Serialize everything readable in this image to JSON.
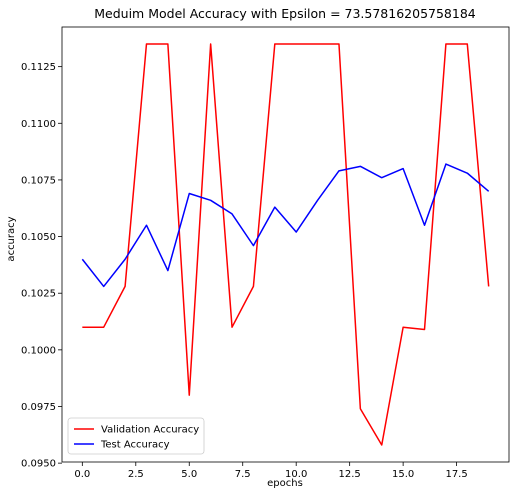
{
  "chart_data": {
    "type": "line",
    "title": "Meduim Model Accuracy with Epsilon = 73.57816205758184",
    "xlabel": "epochs",
    "ylabel": "accuracy",
    "xlim": [
      -0.95,
      19.95
    ],
    "ylim": [
      0.09505,
      0.11425
    ],
    "x_ticks": [
      0.0,
      2.5,
      5.0,
      7.5,
      10.0,
      12.5,
      15.0,
      17.5
    ],
    "x_tick_labels": [
      "0.0",
      "2.5",
      "5.0",
      "7.5",
      "10.0",
      "12.5",
      "15.0",
      "17.5"
    ],
    "y_ticks": [
      0.095,
      0.0975,
      0.1,
      0.1025,
      0.105,
      0.1075,
      0.11,
      0.1125
    ],
    "y_tick_labels": [
      "0.0950",
      "0.0975",
      "0.1000",
      "0.1025",
      "0.1050",
      "0.1075",
      "0.1100",
      "0.1125"
    ],
    "grid": false,
    "legend_position": "lower-left",
    "x": [
      0,
      1,
      2,
      3,
      4,
      5,
      6,
      7,
      8,
      9,
      10,
      11,
      12,
      13,
      14,
      15,
      16,
      17,
      18,
      19
    ],
    "series": [
      {
        "name": "Validation Accuracy",
        "color": "#ff0000",
        "values": [
          0.101,
          0.101,
          0.1028,
          0.1135,
          0.1135,
          0.098,
          0.1135,
          0.101,
          0.1028,
          0.1135,
          0.1135,
          0.1135,
          0.1135,
          0.0974,
          0.0958,
          0.101,
          0.1009,
          0.1135,
          0.1135,
          0.1028
        ]
      },
      {
        "name": "Test Accuracy",
        "color": "#0000ff",
        "values": [
          0.104,
          0.1028,
          0.104,
          0.1055,
          0.1035,
          0.1069,
          0.1066,
          0.106,
          0.1046,
          0.1063,
          0.1052,
          0.1066,
          0.1079,
          0.1081,
          0.1076,
          0.108,
          0.1055,
          0.1082,
          0.1078,
          0.107
        ]
      }
    ]
  }
}
